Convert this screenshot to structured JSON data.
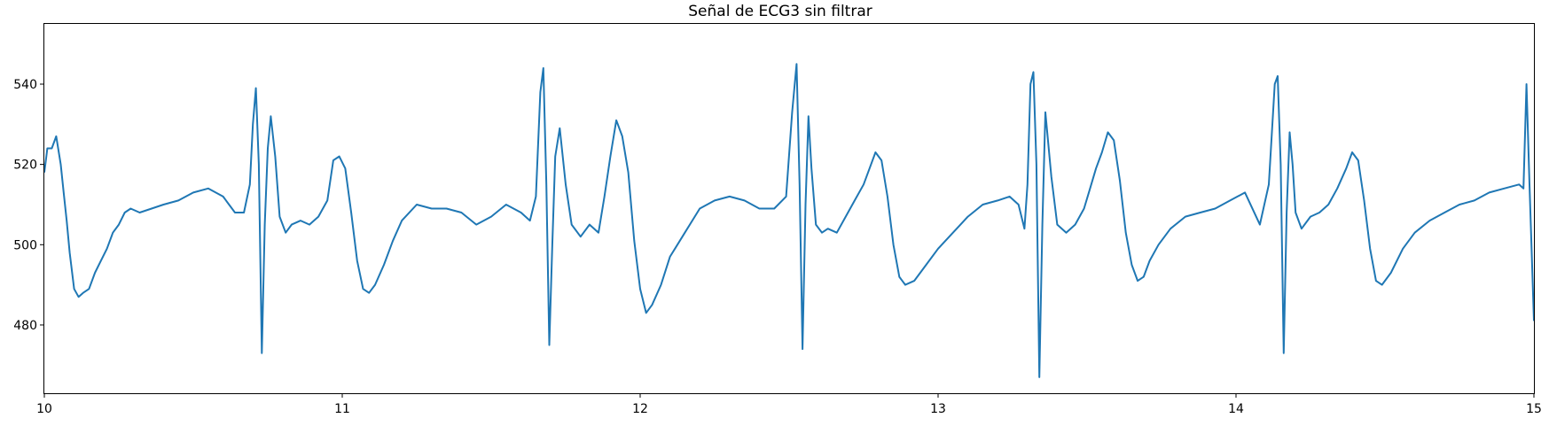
{
  "chart_data": {
    "type": "line",
    "title": "Señal de ECG3 sin filtrar",
    "xlabel": "",
    "ylabel": "",
    "xlim": [
      10,
      15
    ],
    "ylim": [
      463,
      555
    ],
    "x_ticks": [
      "10",
      "11",
      "12",
      "13",
      "14",
      "15"
    ],
    "y_ticks": [
      "480",
      "500",
      "520",
      "540"
    ],
    "grid": false,
    "legend": "none",
    "line_color": "#1f77b4",
    "series": [
      {
        "x": [
          10.0,
          10.01,
          10.025,
          10.04,
          10.055,
          10.065,
          10.075,
          10.085,
          10.1,
          10.115,
          10.13,
          10.15,
          10.17,
          10.19,
          10.21,
          10.23,
          10.25,
          10.27,
          10.29,
          10.32,
          10.36,
          10.4,
          10.45,
          10.5,
          10.55,
          10.6,
          10.64,
          10.67,
          10.69,
          10.7,
          10.71,
          10.72,
          10.73,
          10.74,
          10.75,
          10.76,
          10.775,
          10.79,
          10.81,
          10.83,
          10.86,
          10.89,
          10.92,
          10.95,
          10.97,
          10.99,
          11.01,
          11.03,
          11.05,
          11.07,
          11.09,
          11.11,
          11.14,
          11.17,
          11.2,
          11.25,
          11.3,
          11.35,
          11.4,
          11.45,
          11.5,
          11.55,
          11.6,
          11.63,
          11.65,
          11.665,
          11.675,
          11.685,
          11.695,
          11.705,
          11.715,
          11.73,
          11.75,
          11.77,
          11.8,
          11.83,
          11.86,
          11.88,
          11.9,
          11.92,
          11.94,
          11.96,
          11.98,
          12.0,
          12.02,
          12.04,
          12.07,
          12.1,
          12.15,
          12.2,
          12.25,
          12.3,
          12.35,
          12.4,
          12.45,
          12.49,
          12.51,
          12.525,
          12.535,
          12.545,
          12.555,
          12.565,
          12.575,
          12.59,
          12.61,
          12.63,
          12.66,
          12.69,
          12.72,
          12.75,
          12.77,
          12.79,
          12.81,
          12.83,
          12.85,
          12.87,
          12.89,
          12.92,
          12.95,
          13.0,
          13.05,
          13.1,
          13.15,
          13.2,
          13.24,
          13.27,
          13.29,
          13.3,
          13.31,
          13.32,
          13.33,
          13.34,
          13.35,
          13.36,
          13.38,
          13.4,
          13.43,
          13.46,
          13.49,
          13.51,
          13.53,
          13.55,
          13.57,
          13.59,
          13.61,
          13.63,
          13.65,
          13.67,
          13.69,
          13.71,
          13.74,
          13.78,
          13.83,
          13.88,
          13.93,
          13.98,
          14.03,
          14.08,
          14.11,
          14.13,
          14.14,
          14.15,
          14.16,
          14.17,
          14.18,
          14.19,
          14.2,
          14.22,
          14.25,
          14.28,
          14.31,
          14.34,
          14.37,
          14.39,
          14.41,
          14.43,
          14.45,
          14.47,
          14.49,
          14.52,
          14.56,
          14.6,
          14.65,
          14.7,
          14.75,
          14.8,
          14.85,
          14.9,
          14.95,
          14.965,
          14.975,
          14.985,
          15.0
        ],
        "y": [
          518,
          524,
          524,
          527,
          520,
          513,
          506,
          498,
          489,
          487,
          488,
          489,
          493,
          496,
          499,
          503,
          505,
          508,
          509,
          508,
          509,
          510,
          511,
          513,
          514,
          512,
          508,
          508,
          515,
          530,
          539,
          520,
          473,
          505,
          524,
          532,
          522,
          507,
          503,
          505,
          506,
          505,
          507,
          511,
          521,
          522,
          519,
          508,
          496,
          489,
          488,
          490,
          495,
          501,
          506,
          510,
          509,
          509,
          508,
          505,
          507,
          510,
          508,
          506,
          512,
          538,
          544,
          515,
          475,
          500,
          522,
          529,
          515,
          505,
          502,
          505,
          503,
          512,
          522,
          531,
          527,
          518,
          501,
          489,
          483,
          485,
          490,
          497,
          503,
          509,
          511,
          512,
          511,
          509,
          509,
          512,
          533,
          545,
          515,
          474,
          510,
          532,
          519,
          505,
          503,
          504,
          503,
          507,
          511,
          515,
          519,
          523,
          521,
          512,
          500,
          492,
          490,
          491,
          494,
          499,
          503,
          507,
          510,
          511,
          512,
          510,
          504,
          515,
          540,
          543,
          520,
          467,
          505,
          533,
          517,
          505,
          503,
          505,
          509,
          514,
          519,
          523,
          528,
          526,
          516,
          503,
          495,
          491,
          492,
          496,
          500,
          504,
          507,
          508,
          509,
          511,
          513,
          505,
          515,
          540,
          542,
          520,
          473,
          508,
          528,
          520,
          508,
          504,
          507,
          508,
          510,
          514,
          519,
          523,
          521,
          511,
          499,
          491,
          490,
          493,
          499,
          503,
          506,
          508,
          510,
          511,
          513,
          514,
          515,
          514,
          540,
          515,
          481
        ]
      }
    ]
  }
}
